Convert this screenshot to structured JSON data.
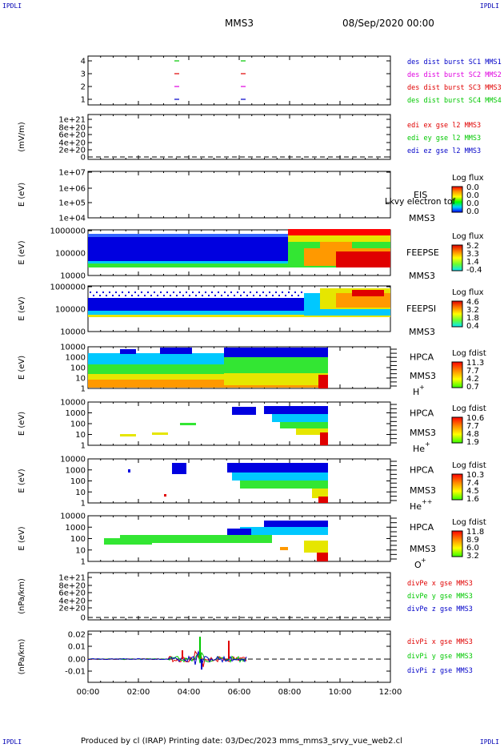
{
  "corners": {
    "tl": "IPDLI",
    "tr": "IPDLI",
    "bl": "IPDLI",
    "br": "IPDLI"
  },
  "header": {
    "mission": "MMS3",
    "datetime": "08/Sep/2020 00:00"
  },
  "footer": "Produced by cl (IRAP)   Printing date: 03/Dec/2023   mms_mms3_srvy_vue_web2.cl",
  "colors": {
    "red": "#e00000",
    "green": "#00c800",
    "blue": "#0000c8",
    "magenta": "#e000e0"
  },
  "chart_data": [
    {
      "type": "scatter",
      "id": "burst",
      "yticks": [
        "1",
        "2",
        "3",
        "4"
      ],
      "legend": [
        {
          "text": "des dist burst SC1 MMS1",
          "color": "#0000c8"
        },
        {
          "text": "des dist burst SC2 MMS2",
          "color": "#e000e0"
        },
        {
          "text": "des dist burst SC3 MMS3",
          "color": "#e00000"
        },
        {
          "text": "des dist burst SC4 MMS4",
          "color": "#00c800"
        }
      ]
    },
    {
      "type": "line",
      "id": "edi",
      "ylabel": "(mV/m)",
      "yticks": [
        "1e+21",
        "8e+20",
        "6e+20",
        "4e+20",
        "2e+20",
        "0"
      ],
      "legend": [
        {
          "text": "edi ex gse l2 MMS3",
          "color": "#e00000"
        },
        {
          "text": "edi ey gse l2 MMS3",
          "color": "#00c800"
        },
        {
          "text": "edi ez gse l2 MMS3",
          "color": "#0000c8"
        }
      ]
    },
    {
      "type": "heatmap",
      "id": "eis",
      "ylabel": "E (eV)",
      "yticks": [
        "1e+07",
        "1e+06",
        "1e+05",
        "1e+04"
      ],
      "label1": "EIS",
      "label2": "MMS3",
      "overlay": "Lkvy electron tof",
      "cbtitle": "Log flux",
      "cbvals": [
        "0.0",
        "0.0",
        "0.0",
        "0.0"
      ]
    },
    {
      "type": "heatmap",
      "id": "feepse",
      "ylabel": "E (eV)",
      "yticks": [
        "1000000",
        "100000",
        "10000"
      ],
      "label1": "FEEPSE",
      "label2": "MMS3",
      "cbtitle": "Log flux",
      "cbvals": [
        "5.2",
        "3.3",
        "1.4",
        "-0.4"
      ]
    },
    {
      "type": "heatmap",
      "id": "feepsi",
      "ylabel": "E (eV)",
      "yticks": [
        "1000000",
        "100000",
        "10000"
      ],
      "label1": "FEEPSI",
      "label2": "MMS3",
      "cbtitle": "Log flux",
      "cbvals": [
        "4.6",
        "3.2",
        "1.8",
        "0.4"
      ]
    },
    {
      "type": "heatmap",
      "id": "hpcah",
      "ylabel": "E (eV)",
      "yticks": [
        "10000",
        "1000",
        "100",
        "10",
        "1"
      ],
      "label1": "HPCA",
      "label2": "MMS3",
      "species": "H",
      "charge": "+",
      "cbtitle": "Log fdist",
      "cbvals": [
        "11.3",
        "7.7",
        "4.2",
        "0.7"
      ]
    },
    {
      "type": "heatmap",
      "id": "hpcahe",
      "ylabel": "E (eV)",
      "yticks": [
        "10000",
        "1000",
        "100",
        "10",
        "1"
      ],
      "label1": "HPCA",
      "label2": "MMS3",
      "species": "He",
      "charge": "+",
      "cbtitle": "Log fdist",
      "cbvals": [
        "10.6",
        "7.7",
        "4.8",
        "1.9"
      ]
    },
    {
      "type": "heatmap",
      "id": "hpcahepp",
      "ylabel": "E (eV)",
      "yticks": [
        "10000",
        "1000",
        "100",
        "10",
        "1"
      ],
      "label1": "HPCA",
      "label2": "MMS3",
      "species": "He",
      "charge": "++",
      "cbtitle": "Log fdist",
      "cbvals": [
        "10.3",
        "7.4",
        "4.5",
        "1.6"
      ]
    },
    {
      "type": "heatmap",
      "id": "hpcao",
      "ylabel": "E (eV)",
      "yticks": [
        "10000",
        "1000",
        "100",
        "10",
        "1"
      ],
      "label1": "HPCA",
      "label2": "MMS3",
      "species": "O",
      "charge": "+",
      "cbtitle": "Log fdist",
      "cbvals": [
        "11.8",
        "8.9",
        "6.0",
        "3.2"
      ]
    },
    {
      "type": "line",
      "id": "divpe",
      "ylabel": "(nPa/km)",
      "yticks": [
        "1e+21",
        "8e+20",
        "6e+20",
        "4e+20",
        "2e+20",
        "0"
      ],
      "legend": [
        {
          "text": "divPe x gse MMS3",
          "color": "#e00000"
        },
        {
          "text": "divPe y gse MMS3",
          "color": "#00c800"
        },
        {
          "text": "divPe z gse MMS3",
          "color": "#0000c8"
        }
      ]
    },
    {
      "type": "line",
      "id": "divpi",
      "ylabel": "(nPa/km)",
      "yticks": [
        "0.02",
        "0.01",
        "0.00",
        "-0.01"
      ],
      "legend": [
        {
          "text": "divPi x gse MMS3",
          "color": "#e00000"
        },
        {
          "text": "divPi y gse MMS3",
          "color": "#00c800"
        },
        {
          "text": "divPi z gse MMS3",
          "color": "#0000c8"
        }
      ]
    }
  ],
  "xaxis": {
    "ticks": [
      "00:00",
      "02:00",
      "04:00",
      "06:00",
      "08:00",
      "10:00",
      "12:00"
    ]
  }
}
